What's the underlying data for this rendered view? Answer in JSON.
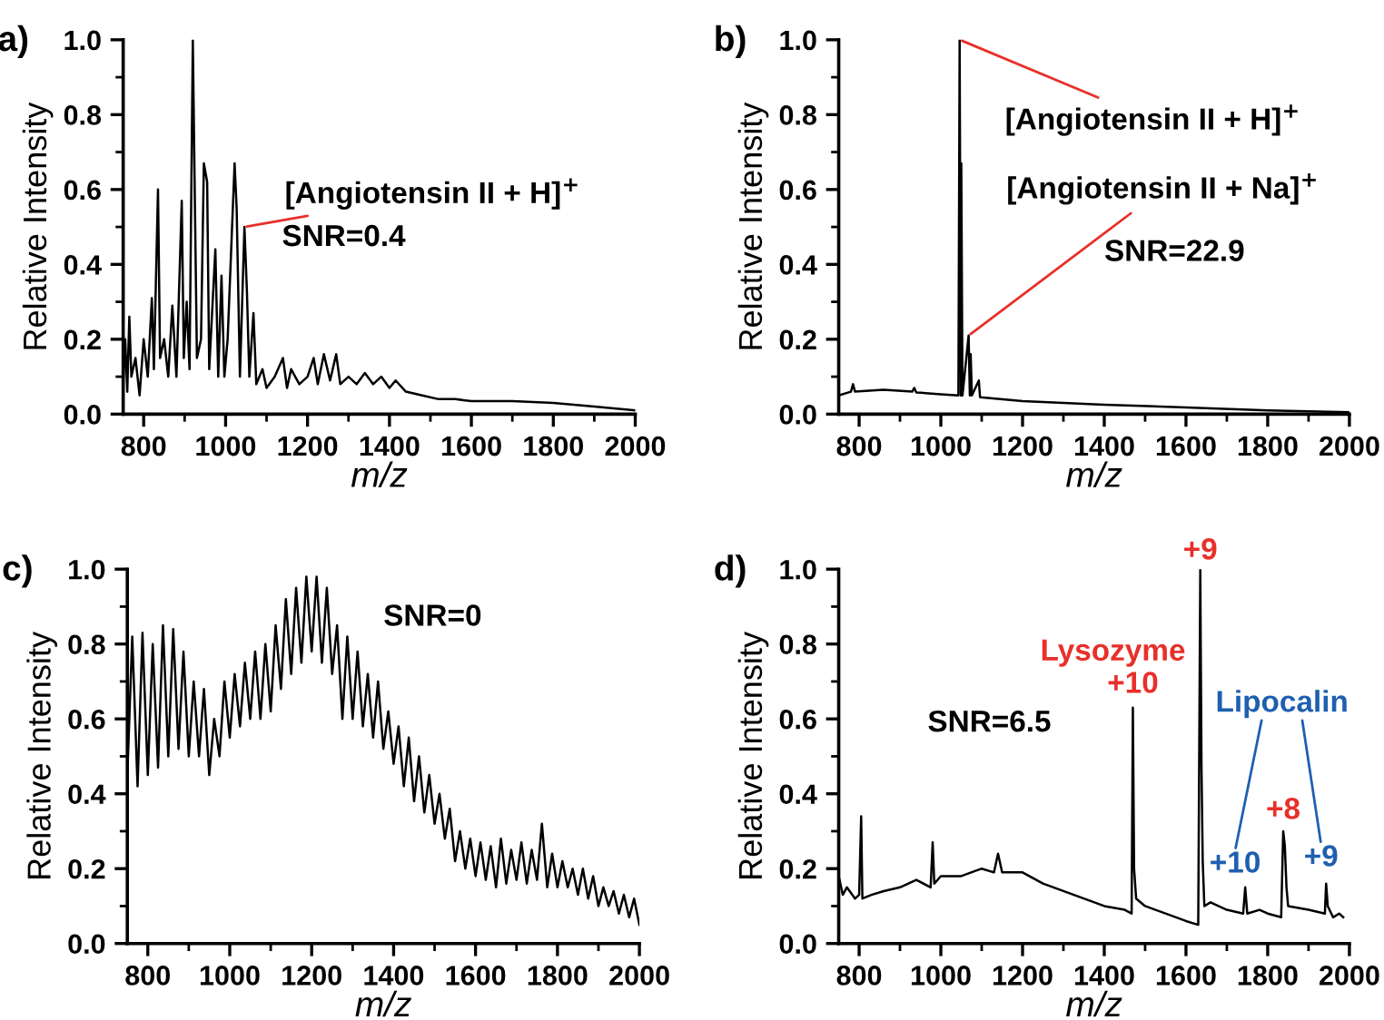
{
  "chart_data": [
    {
      "type": "line",
      "title": "a)",
      "xlabel": "m/z",
      "ylabel": "Relative Intensity",
      "xlim": [
        750,
        2000
      ],
      "ylim": [
        0,
        1.0
      ],
      "xticks": [
        800,
        1000,
        1200,
        1400,
        1600,
        1800,
        2000
      ],
      "yticks": [
        {
          "value": 0,
          "label": "0.0"
        },
        {
          "value": 0.2,
          "label": "0.2"
        },
        {
          "value": 0.4,
          "label": "0.4"
        },
        {
          "value": 0.6,
          "label": "0.6"
        },
        {
          "value": 0.8,
          "label": "0.8"
        },
        {
          "value": 1.0,
          "label": "1.0"
        }
      ],
      "grid": false,
      "marker": "none",
      "line_style": "solid",
      "annotations": [
        {
          "text": "[Angiotensin II + H]$^{+}$",
          "x": 1046,
          "y": 0.5
        },
        "SNR=0.4"
      ],
      "series": [
        {
          "color": "#000000",
          "x": [
            750,
            755,
            760,
            765,
            770,
            780,
            790,
            800,
            810,
            820,
            825,
            835,
            840,
            850,
            860,
            870,
            880,
            893,
            898,
            905,
            912,
            920,
            925,
            930,
            940,
            947,
            955,
            960,
            975,
            982,
            990,
            997,
            1005,
            1022,
            1027,
            1035,
            1046,
            1052,
            1058,
            1068,
            1075,
            1090,
            1100,
            1120,
            1140,
            1150,
            1160,
            1180,
            1200,
            1215,
            1225,
            1240,
            1255,
            1270,
            1280,
            1300,
            1320,
            1340,
            1360,
            1380,
            1400,
            1415,
            1440,
            1480,
            1520,
            1560,
            1600,
            1700,
            1800,
            1900,
            2000
          ],
          "values": [
            0.08,
            0.2,
            0.06,
            0.26,
            0.1,
            0.15,
            0.05,
            0.2,
            0.1,
            0.31,
            0.12,
            0.6,
            0.15,
            0.2,
            0.1,
            0.29,
            0.1,
            0.57,
            0.15,
            0.3,
            0.12,
            1.0,
            0.57,
            0.15,
            0.2,
            0.67,
            0.62,
            0.12,
            0.44,
            0.1,
            0.37,
            0.1,
            0.2,
            0.67,
            0.55,
            0.1,
            0.5,
            0.33,
            0.1,
            0.27,
            0.08,
            0.12,
            0.07,
            0.1,
            0.15,
            0.07,
            0.12,
            0.08,
            0.1,
            0.15,
            0.08,
            0.16,
            0.09,
            0.16,
            0.08,
            0.1,
            0.08,
            0.11,
            0.08,
            0.1,
            0.07,
            0.09,
            0.06,
            0.05,
            0.04,
            0.04,
            0.035,
            0.035,
            0.03,
            0.02,
            0.01
          ]
        }
      ]
    },
    {
      "type": "line",
      "title": "b)",
      "xlabel": "m/z",
      "ylabel": "Relative Intensity",
      "xlim": [
        750,
        2000
      ],
      "ylim": [
        0,
        1.0
      ],
      "xticks": [
        800,
        1000,
        1200,
        1400,
        1600,
        1800,
        2000
      ],
      "yticks": [
        {
          "value": 0,
          "label": "0.0"
        },
        {
          "value": 0.2,
          "label": "0.2"
        },
        {
          "value": 0.4,
          "label": "0.4"
        },
        {
          "value": 0.6,
          "label": "0.6"
        },
        {
          "value": 0.8,
          "label": "0.8"
        },
        {
          "value": 1.0,
          "label": "1.0"
        }
      ],
      "grid": false,
      "marker": "none",
      "line_style": "solid",
      "annotations": [
        {
          "text": "[Angiotensin II + H]$^{+}$",
          "x": 1046,
          "y": 1.0
        },
        {
          "text": "[Angiotensin II + Na]$^{+}$",
          "x": 1068,
          "y": 0.21
        },
        "SNR=22.9"
      ],
      "series": [
        {
          "color": "#000000",
          "x": [
            750,
            780,
            785,
            790,
            860,
            930,
            935,
            940,
            1000,
            1043,
            1046,
            1049,
            1050,
            1053,
            1068,
            1071,
            1073,
            1076,
            1093,
            1096,
            1200,
            1400,
            1600,
            1800,
            2000
          ],
          "values": [
            0.05,
            0.06,
            0.08,
            0.06,
            0.065,
            0.06,
            0.07,
            0.058,
            0.053,
            0.05,
            1.0,
            0.05,
            0.67,
            0.05,
            0.21,
            0.05,
            0.16,
            0.05,
            0.09,
            0.045,
            0.035,
            0.025,
            0.018,
            0.01,
            0.005
          ]
        }
      ]
    },
    {
      "type": "line",
      "title": "c)",
      "xlabel": "m/z",
      "ylabel": "Relative Intensity",
      "xlim": [
        750,
        2000
      ],
      "ylim": [
        0,
        1.0
      ],
      "xticks": [
        800,
        1000,
        1200,
        1400,
        1600,
        1800,
        2000
      ],
      "yticks": [
        {
          "value": 0,
          "label": "0.0"
        },
        {
          "value": 0.2,
          "label": "0.2"
        },
        {
          "value": 0.4,
          "label": "0.4"
        },
        {
          "value": 0.6,
          "label": "0.6"
        },
        {
          "value": 0.8,
          "label": "0.8"
        },
        {
          "value": 1.0,
          "label": "1.0"
        }
      ],
      "grid": false,
      "marker": "none",
      "line_style": "solid",
      "annotations": [
        "SNR=0"
      ],
      "series": [
        {
          "color": "#000000",
          "x": [
            750,
            762,
            775,
            787,
            800,
            812,
            825,
            837,
            850,
            862,
            875,
            887,
            900,
            912,
            925,
            937,
            950,
            962,
            975,
            987,
            1000,
            1012,
            1025,
            1037,
            1050,
            1062,
            1075,
            1087,
            1100,
            1112,
            1125,
            1137,
            1150,
            1162,
            1175,
            1187,
            1200,
            1212,
            1225,
            1237,
            1250,
            1262,
            1275,
            1287,
            1300,
            1312,
            1325,
            1337,
            1350,
            1362,
            1375,
            1387,
            1400,
            1412,
            1425,
            1437,
            1450,
            1462,
            1475,
            1487,
            1500,
            1512,
            1525,
            1537,
            1550,
            1562,
            1575,
            1587,
            1600,
            1612,
            1625,
            1637,
            1650,
            1662,
            1675,
            1687,
            1700,
            1712,
            1725,
            1737,
            1750,
            1762,
            1775,
            1787,
            1800,
            1812,
            1825,
            1837,
            1850,
            1862,
            1875,
            1887,
            1900,
            1912,
            1925,
            1937,
            1950,
            1962,
            1975,
            1987,
            2000
          ],
          "values": [
            0.45,
            0.82,
            0.42,
            0.83,
            0.45,
            0.8,
            0.47,
            0.85,
            0.5,
            0.84,
            0.52,
            0.78,
            0.5,
            0.7,
            0.5,
            0.68,
            0.45,
            0.6,
            0.5,
            0.7,
            0.55,
            0.72,
            0.58,
            0.75,
            0.6,
            0.78,
            0.6,
            0.8,
            0.62,
            0.85,
            0.68,
            0.92,
            0.72,
            0.95,
            0.75,
            0.98,
            0.78,
            0.98,
            0.75,
            0.95,
            0.72,
            0.85,
            0.6,
            0.82,
            0.6,
            0.78,
            0.58,
            0.72,
            0.55,
            0.7,
            0.52,
            0.62,
            0.48,
            0.58,
            0.42,
            0.55,
            0.38,
            0.5,
            0.35,
            0.45,
            0.32,
            0.4,
            0.28,
            0.36,
            0.22,
            0.3,
            0.2,
            0.28,
            0.18,
            0.27,
            0.17,
            0.26,
            0.15,
            0.28,
            0.16,
            0.25,
            0.17,
            0.27,
            0.16,
            0.25,
            0.17,
            0.32,
            0.15,
            0.24,
            0.15,
            0.22,
            0.15,
            0.2,
            0.13,
            0.2,
            0.12,
            0.18,
            0.1,
            0.15,
            0.1,
            0.14,
            0.08,
            0.13,
            0.07,
            0.12,
            0.05
          ]
        }
      ]
    },
    {
      "type": "line",
      "title": "d)",
      "xlabel": "m/z",
      "ylabel": "Relative Intensity",
      "xlim": [
        750,
        2000
      ],
      "ylim": [
        0,
        1.0
      ],
      "xticks": [
        800,
        1000,
        1200,
        1400,
        1600,
        1800,
        2000
      ],
      "yticks": [
        {
          "value": 0,
          "label": "0.0"
        },
        {
          "value": 0.2,
          "label": "0.2"
        },
        {
          "value": 0.4,
          "label": "0.4"
        },
        {
          "value": 0.6,
          "label": "0.6"
        },
        {
          "value": 0.8,
          "label": "0.8"
        },
        {
          "value": 1.0,
          "label": "1.0"
        }
      ],
      "grid": false,
      "marker": "none",
      "line_style": "solid",
      "annotations": [
        "Lysozyme",
        {
          "text": "+10",
          "x": 1470,
          "y": 0.63
        },
        {
          "text": "+9",
          "x": 1635,
          "y": 1.0
        },
        {
          "text": "+8",
          "x": 1838,
          "y": 0.3
        },
        "Lipocalin",
        {
          "text": "+10",
          "x": 1745,
          "y": 0.15
        },
        {
          "text": "+9",
          "x": 1943,
          "y": 0.16
        },
        "SNR=6.5"
      ],
      "series": [
        {
          "color": "#000000",
          "x": [
            750,
            760,
            770,
            790,
            800,
            805,
            808,
            830,
            860,
            900,
            940,
            975,
            980,
            984,
            1000,
            1050,
            1100,
            1130,
            1140,
            1150,
            1200,
            1250,
            1300,
            1350,
            1400,
            1450,
            1467,
            1470,
            1473,
            1478,
            1500,
            1550,
            1600,
            1630,
            1635,
            1638,
            1641,
            1645,
            1660,
            1700,
            1740,
            1745,
            1750,
            1780,
            1800,
            1833,
            1838,
            1842,
            1846,
            1850,
            1900,
            1940,
            1943,
            1947,
            1960,
            1975,
            1985
          ],
          "values": [
            0.18,
            0.13,
            0.15,
            0.12,
            0.13,
            0.34,
            0.12,
            0.13,
            0.14,
            0.15,
            0.17,
            0.15,
            0.27,
            0.16,
            0.18,
            0.18,
            0.2,
            0.19,
            0.24,
            0.19,
            0.19,
            0.16,
            0.14,
            0.12,
            0.1,
            0.09,
            0.08,
            0.63,
            0.2,
            0.12,
            0.1,
            0.08,
            0.06,
            0.05,
            1.0,
            0.47,
            0.22,
            0.1,
            0.11,
            0.09,
            0.08,
            0.15,
            0.08,
            0.09,
            0.08,
            0.07,
            0.3,
            0.26,
            0.15,
            0.1,
            0.09,
            0.08,
            0.16,
            0.1,
            0.07,
            0.08,
            0.07
          ]
        }
      ]
    }
  ]
}
